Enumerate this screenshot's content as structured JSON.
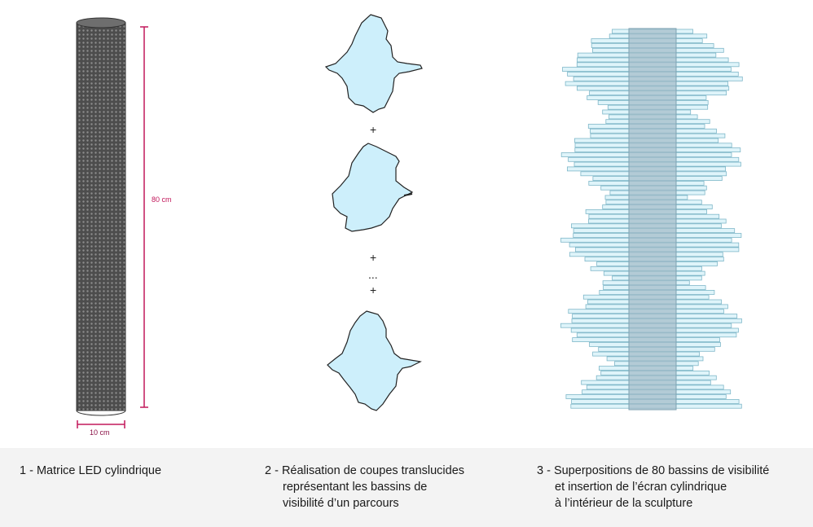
{
  "panel1": {
    "height_label": "80 cm",
    "width_label": "10 cm",
    "caption": "1 - Matrice LED cylindrique"
  },
  "panel2": {
    "separators": [
      "+",
      "+",
      "...",
      "+"
    ],
    "caption_lines": [
      "2 - Réalisation de coupes translucides",
      "représentant les bassins de",
      "visibilité d’un parcours"
    ]
  },
  "panel3": {
    "caption_lines": [
      "3 - Superpositions de 80 bassins de visibilité",
      "et insertion de l’écran cylindrique",
      "à l’intérieur de la sculpture"
    ]
  },
  "colors": {
    "cylinder": "#5a5a5a",
    "dimension": "#c2185b",
    "basin_fill": "#cdeffb",
    "basin_stroke": "#222222",
    "layer_fill": "#dff4fa",
    "layer_stroke": "#7fb7c9",
    "screen_fill": "#9fb9c6"
  }
}
